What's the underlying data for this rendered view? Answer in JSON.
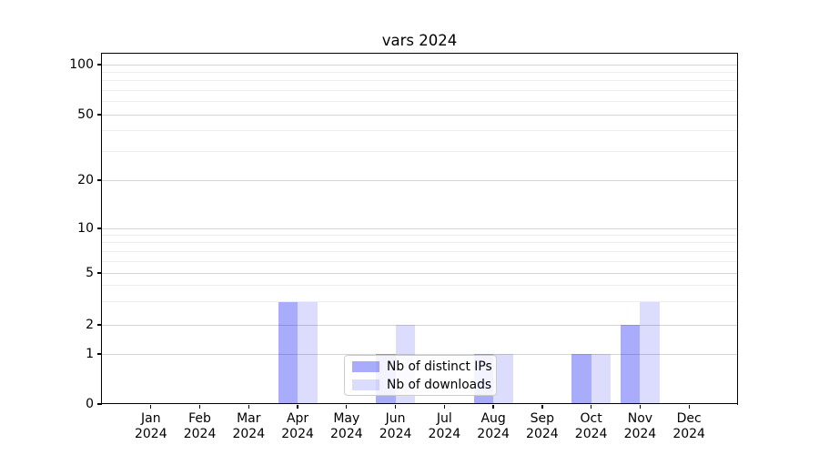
{
  "chart_data": {
    "type": "bar",
    "title": "vars 2024",
    "x_ticklabels": [
      {
        "line1": "Jan",
        "line2": "2024"
      },
      {
        "line1": "Feb",
        "line2": "2024"
      },
      {
        "line1": "Mar",
        "line2": "2024"
      },
      {
        "line1": "Apr",
        "line2": "2024"
      },
      {
        "line1": "May",
        "line2": "2024"
      },
      {
        "line1": "Jun",
        "line2": "2024"
      },
      {
        "line1": "Jul",
        "line2": "2024"
      },
      {
        "line1": "Aug",
        "line2": "2024"
      },
      {
        "line1": "Sep",
        "line2": "2024"
      },
      {
        "line1": "Oct",
        "line2": "2024"
      },
      {
        "line1": "Nov",
        "line2": "2024"
      },
      {
        "line1": "Dec",
        "line2": "2024"
      }
    ],
    "series": [
      {
        "name": "Nb of distinct IPs",
        "color": "rgba(10,16,240,0.35)",
        "solid_hex": "#a9abf7",
        "values": [
          0,
          0,
          0,
          3,
          0,
          1,
          0,
          1,
          0,
          1,
          2,
          0
        ]
      },
      {
        "name": "Nb of downloads",
        "color": "rgba(10,16,240,0.14)",
        "solid_hex": "#ddddfc",
        "values": [
          0,
          0,
          0,
          3,
          0,
          2,
          0,
          1,
          0,
          1,
          3,
          0
        ]
      }
    ],
    "y_axis": {
      "scale": "symlog",
      "ticks": [
        0,
        1,
        2,
        5,
        10,
        20,
        50,
        100
      ],
      "minor_ticks": [
        3,
        4,
        6,
        7,
        8,
        9,
        30,
        40,
        60,
        70,
        80,
        90
      ],
      "lim": [
        0,
        117
      ]
    },
    "grid": {
      "major_color": "#d4d4d4",
      "minor_color": "#ededed",
      "orientation": "horizontal"
    },
    "legend": {
      "position": "lower center"
    }
  }
}
